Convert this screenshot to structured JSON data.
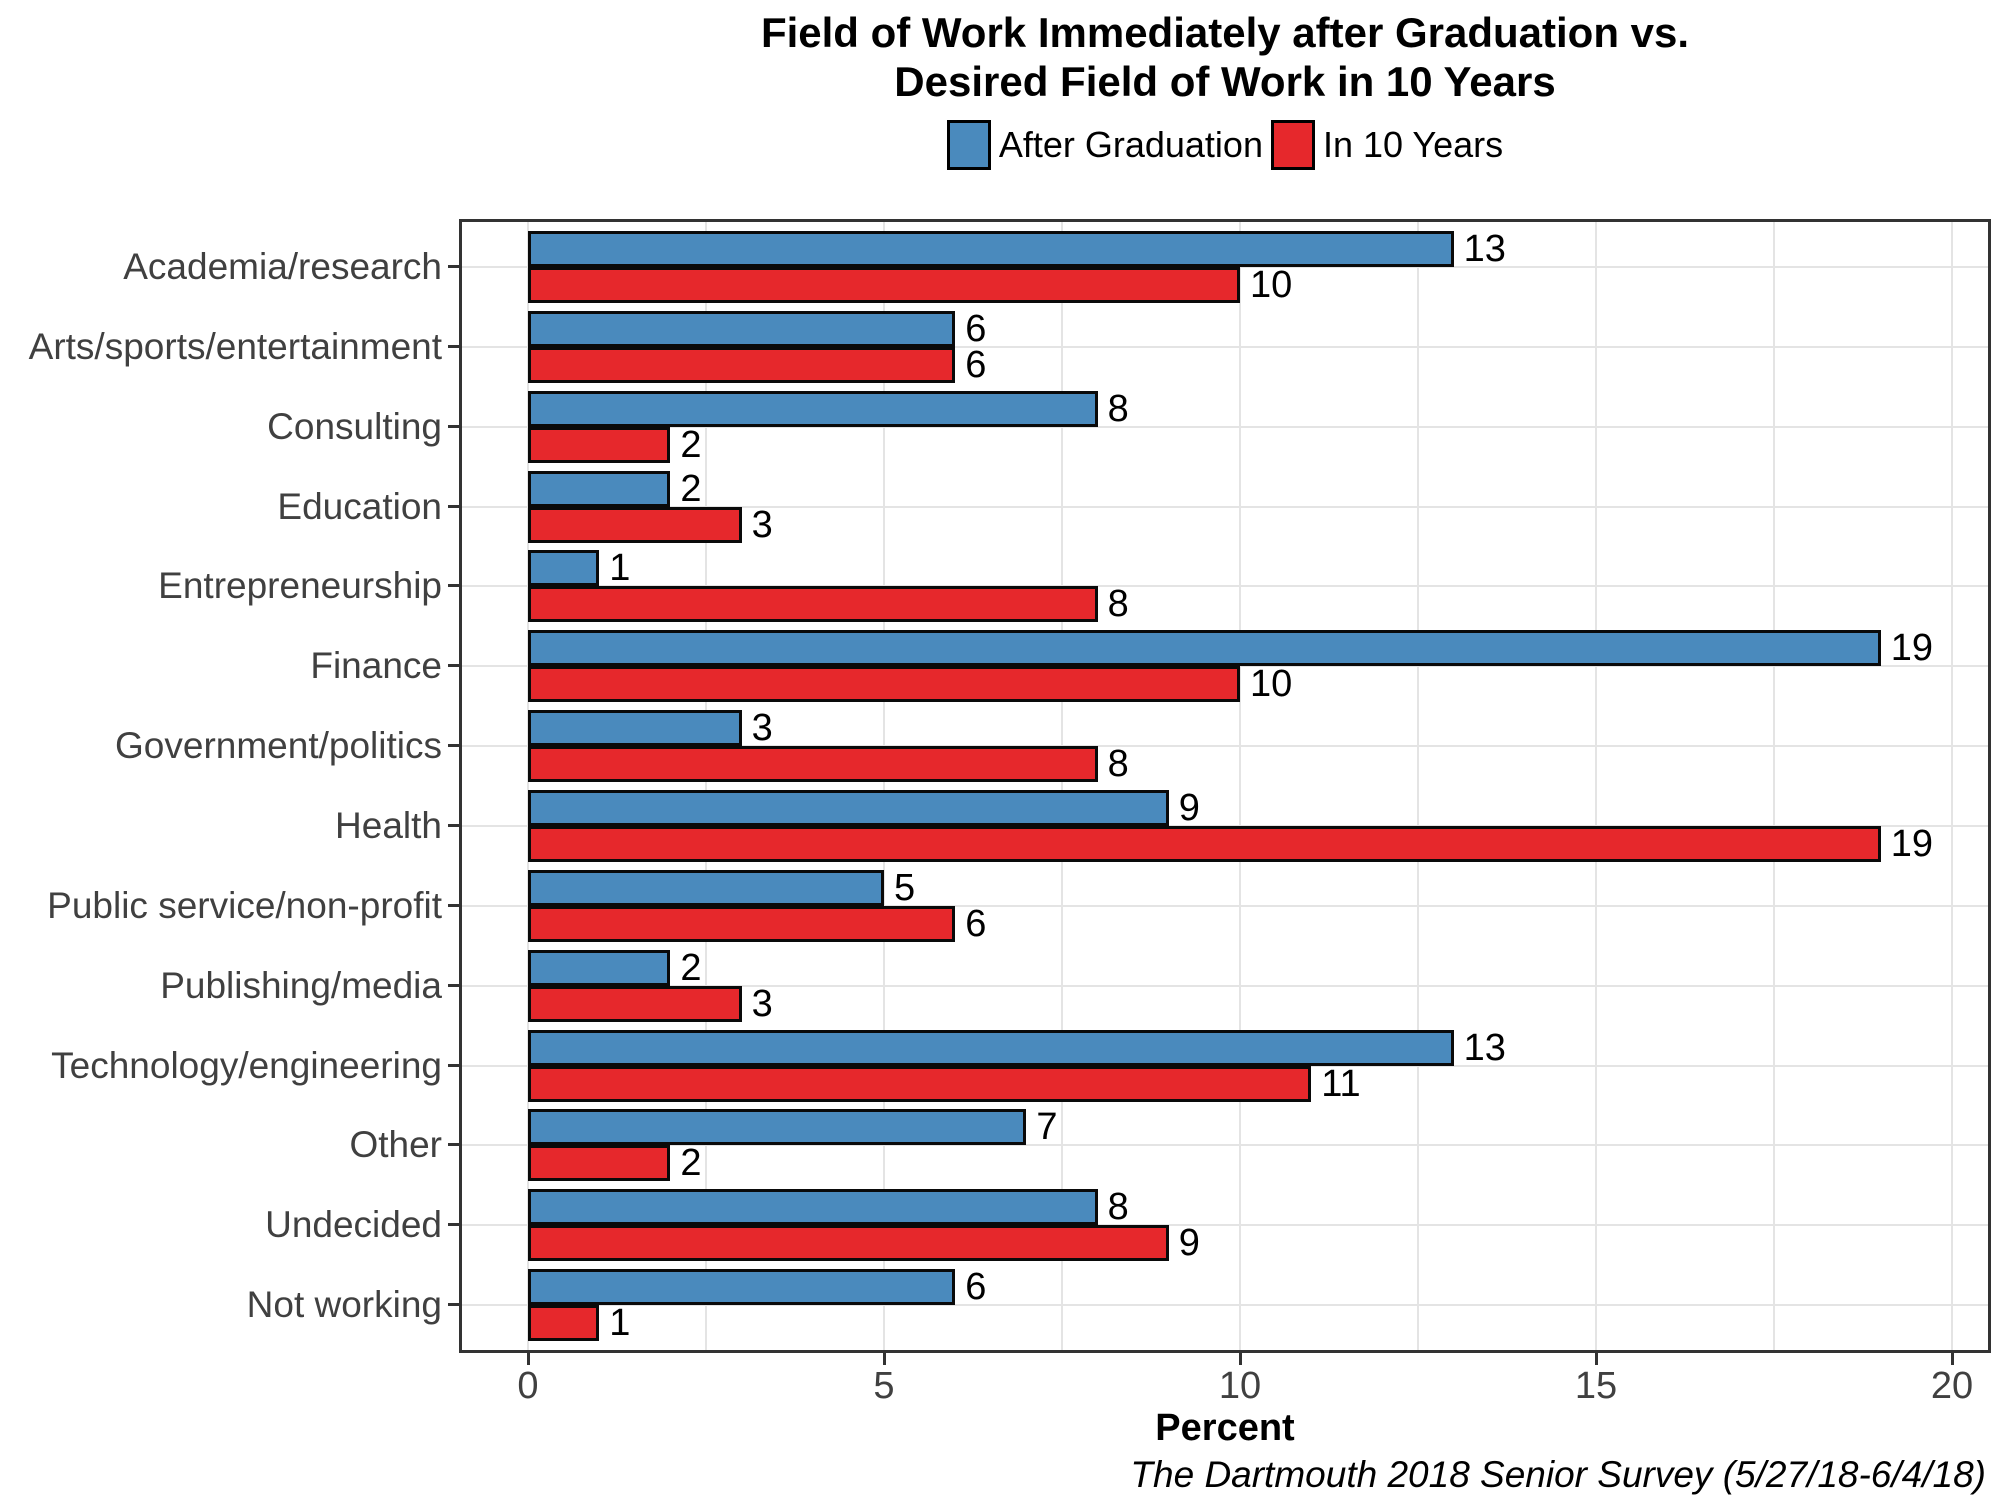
{
  "chart_data": {
    "type": "bar",
    "orientation": "horizontal",
    "title_lines": [
      "Field of Work Immediately after Graduation vs.",
      "Desired Field of Work in 10 Years"
    ],
    "categories": [
      "Academia/research",
      "Arts/sports/entertainment",
      "Consulting",
      "Education",
      "Entrepreneurship",
      "Finance",
      "Government/politics",
      "Health",
      "Public service/non-profit",
      "Publishing/media",
      "Technology/engineering",
      "Other",
      "Undecided",
      "Not working"
    ],
    "series": [
      {
        "name": "After Graduation",
        "color": "#4A8ABD",
        "values": [
          13,
          6,
          8,
          2,
          1,
          19,
          3,
          9,
          5,
          2,
          13,
          7,
          8,
          6
        ]
      },
      {
        "name": "In 10 Years",
        "color": "#E6282C",
        "values": [
          10,
          6,
          2,
          3,
          8,
          10,
          8,
          19,
          6,
          3,
          11,
          2,
          9,
          1
        ]
      }
    ],
    "xlabel": "Percent",
    "x_ticks": [
      0,
      5,
      10,
      15,
      20
    ],
    "xlim": [
      0,
      20
    ],
    "grid": true,
    "bar_value_labels": true,
    "legend_position": "top-center",
    "caption": "The Dartmouth 2018 Senior Survey (5/27/18-6/4/18)",
    "colors": {
      "bar_outline": "#0a0a0a",
      "gridline": "#e4e4e4",
      "panel_border": "#333333",
      "axis_text": "#404040"
    }
  }
}
